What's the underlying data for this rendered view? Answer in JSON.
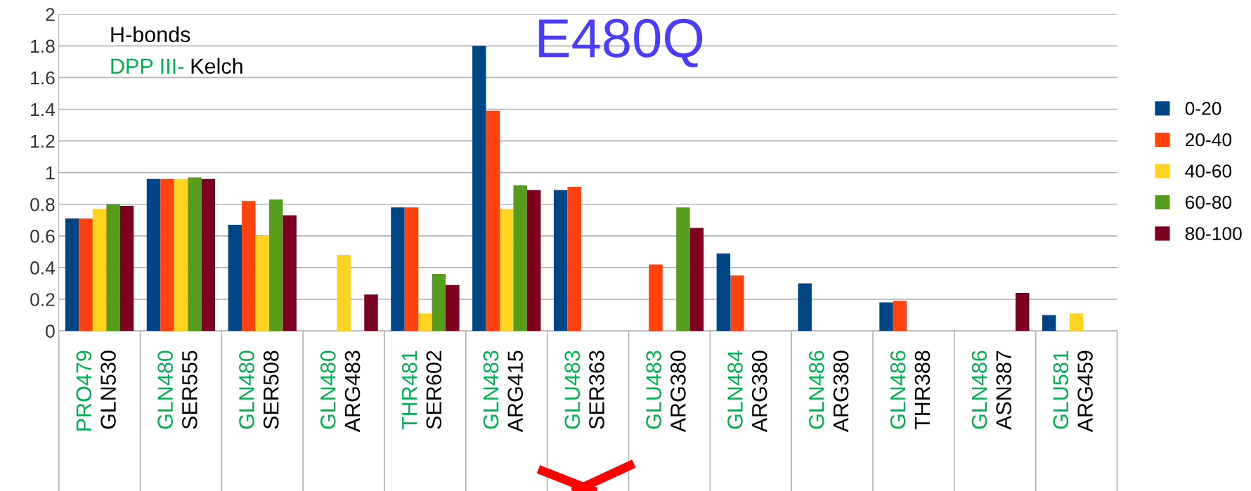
{
  "chart_data": {
    "type": "bar",
    "title": "E480Q",
    "annotations": [
      "H-bonds",
      "DPP III-",
      "Kelch"
    ],
    "categories": [
      "PRO479\nGLN530",
      "GLN480\nSER555",
      "GLN480\nSER508",
      "GLN480\nARG483",
      "THR481\nSER602",
      "GLN483\nARG415",
      "GLU483\nSER363",
      "GLU483\nARG380",
      "GLN484\nARG380",
      "GLN486\nARG380",
      "GLN486\nTHR388",
      "GLN486\nASN387",
      "GLU581\nARG459"
    ],
    "series": [
      {
        "name": "0-20",
        "color": "#004586",
        "values": [
          0.71,
          0.96,
          0.67,
          null,
          0.78,
          1.8,
          0.89,
          null,
          0.49,
          0.3,
          0.18,
          null,
          0.1
        ]
      },
      {
        "name": "20-40",
        "color": "#ff420e",
        "values": [
          0.71,
          0.96,
          0.82,
          null,
          0.78,
          1.39,
          0.91,
          0.42,
          0.35,
          null,
          0.19,
          null,
          null
        ]
      },
      {
        "name": "40-60",
        "color": "#ffd320",
        "values": [
          0.77,
          0.96,
          0.6,
          0.48,
          0.11,
          0.77,
          null,
          null,
          null,
          null,
          null,
          null,
          0.11
        ]
      },
      {
        "name": "60-80",
        "color": "#579d1c",
        "values": [
          0.8,
          0.97,
          0.83,
          null,
          0.36,
          0.92,
          null,
          0.78,
          null,
          null,
          null,
          null,
          null
        ]
      },
      {
        "name": "80-100",
        "color": "#7e0021",
        "values": [
          0.79,
          0.96,
          0.73,
          0.23,
          0.29,
          0.89,
          null,
          0.65,
          null,
          null,
          null,
          0.24,
          null
        ]
      }
    ],
    "ylim": [
      0,
      2
    ],
    "yticks": [
      0,
      0.2,
      0.4,
      0.6,
      0.8,
      1,
      1.2,
      1.4,
      1.6,
      1.8,
      2
    ],
    "grid": "y",
    "legend": "right"
  }
}
